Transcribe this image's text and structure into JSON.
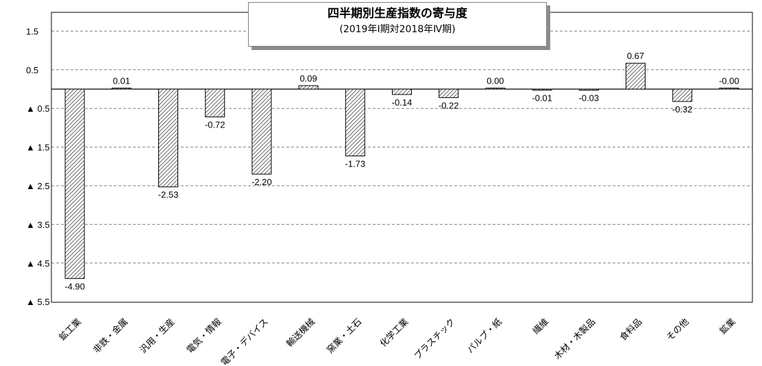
{
  "chart_data": {
    "type": "bar",
    "title": "四半期別生産指数の寄与度",
    "subtitle": "(2019年Ⅰ期対2018年Ⅳ期)",
    "categories": [
      "鉱工業",
      "非鉄・金属",
      "汎用・生産",
      "電気・情報",
      "電子・デバイス",
      "輸送機械",
      "窯業・土石",
      "化学工業",
      "プラスチック",
      "パルプ・紙",
      "繊維",
      "木材・木製品",
      "食料品",
      "その他",
      "鉱業"
    ],
    "values": [
      -4.9,
      0.01,
      -2.53,
      -0.72,
      -2.2,
      0.09,
      -1.73,
      -0.14,
      -0.22,
      0.0,
      -0.01,
      -0.03,
      0.67,
      -0.32,
      -0.0
    ],
    "value_labels": [
      "-4.90",
      "0.01",
      "-2.53",
      "-0.72",
      "-2.20",
      "0.09",
      "-1.73",
      "-0.14",
      "-0.22",
      "0.00",
      "-0.01",
      "-0.03",
      "0.67",
      "-0.32",
      "-0.00"
    ],
    "ylim": [
      -5.5,
      2.0
    ],
    "yticks": [
      1.5,
      0.5,
      -0.5,
      -1.5,
      -2.5,
      -3.5,
      -4.5,
      -5.5
    ],
    "ytick_labels": [
      "1.5",
      "0.5",
      "▲ 0.5",
      "▲ 1.5",
      "▲ 2.5",
      "▲ 3.5",
      "▲ 4.5",
      "▲ 5.5"
    ],
    "grid": true,
    "bar_pattern": "diagonal-hatch",
    "colors": {
      "bar_fill": "#ffffff",
      "hatch": "#404040",
      "bar_edge": "#000000",
      "grid": "#808080"
    }
  }
}
